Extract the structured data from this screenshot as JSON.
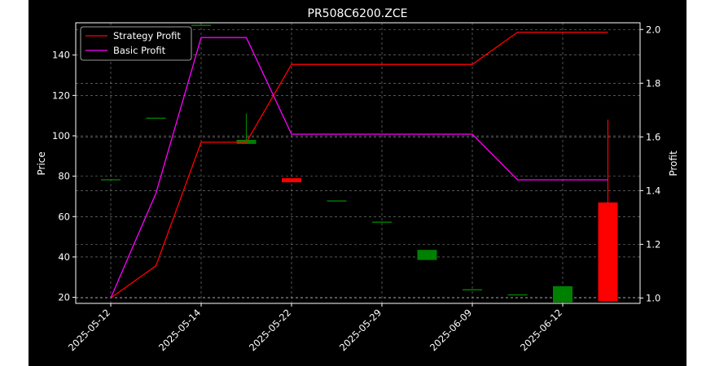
{
  "chart_data": {
    "type": "candlestick-line",
    "title": "PR508C6200.ZCE",
    "ylabel": "Price",
    "y2label": "Profit",
    "ylim": [
      17,
      156
    ],
    "y2lim": [
      0.98,
      2.025
    ],
    "yticks": [
      20,
      40,
      60,
      80,
      100,
      120,
      140
    ],
    "y2ticks": [
      1.0,
      1.2,
      1.4,
      1.6,
      1.8,
      2.0
    ],
    "x_tick_labels": [
      "2025-05-12",
      "2025-05-14",
      "2025-05-22",
      "2025-05-29",
      "2025-06-09",
      "2025-06-12"
    ],
    "x_tick_index": [
      0,
      2,
      4,
      6,
      8,
      10
    ],
    "grid": true,
    "legend_position": "top-left",
    "colors": {
      "background": "#000000",
      "axes_edge": "#ffffff",
      "grid": "#888888",
      "up": "#008000",
      "down": "#ff0000",
      "strategy": "#ff0000",
      "basic": "#ff00ff"
    },
    "candles": [
      {
        "open": 78.5,
        "high": 78.5,
        "low": 78.5,
        "close": 78.5
      },
      {
        "open": 109,
        "high": 109,
        "low": 109,
        "close": 109
      },
      {
        "open": 155,
        "high": 155,
        "low": 155,
        "close": 155
      },
      {
        "open": 96,
        "high": 111,
        "low": 96,
        "close": 98
      },
      {
        "open": 79,
        "high": 79,
        "low": 77,
        "close": 77
      },
      {
        "open": 68,
        "high": 68,
        "low": 68,
        "close": 68
      },
      {
        "open": 57.5,
        "high": 57.5,
        "low": 57.5,
        "close": 57.5
      },
      {
        "open": 38.5,
        "high": 43.5,
        "low": 38.5,
        "close": 43.5
      },
      {
        "open": 24,
        "high": 24,
        "low": 24,
        "close": 24
      },
      {
        "open": 21.5,
        "high": 21.5,
        "low": 21.5,
        "close": 21.5
      },
      {
        "open": 17.5,
        "high": 25.5,
        "low": 17.5,
        "close": 25.5
      },
      {
        "open": 67,
        "high": 108,
        "low": 18,
        "close": 18
      }
    ],
    "series": [
      {
        "name": "Strategy Profit",
        "color": "#ff0000",
        "values": [
          1.0,
          1.12,
          1.58,
          1.58,
          1.87,
          1.87,
          1.87,
          1.87,
          1.87,
          1.99,
          1.99,
          1.99
        ]
      },
      {
        "name": "Basic Profit",
        "color": "#ff00ff",
        "values": [
          1.0,
          1.39,
          1.97,
          1.97,
          1.61,
          1.61,
          1.61,
          1.61,
          1.61,
          1.44,
          1.44,
          1.44
        ]
      }
    ]
  }
}
